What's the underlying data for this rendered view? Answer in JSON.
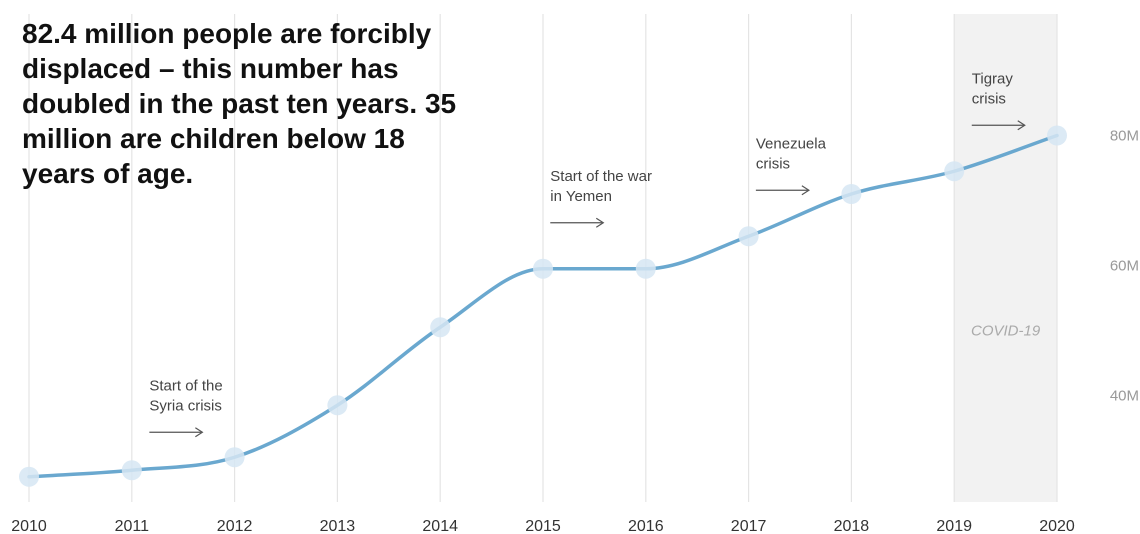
{
  "headline": "82.4 million people are forcibly displaced – this number has doubled in the past ten years. 35 million are children below 18 years of age.",
  "chart_data": {
    "type": "line",
    "title": "82.4 million people are forcibly displaced – this number has doubled in the past ten years. 35 million are children below 18 years of age.",
    "xlabel": "",
    "ylabel": "",
    "x": [
      2010,
      2011,
      2012,
      2013,
      2014,
      2015,
      2016,
      2017,
      2018,
      2019,
      2020
    ],
    "series": [
      {
        "values": [
          27.5,
          28.5,
          30.5,
          38.5,
          50.5,
          59.5,
          59.5,
          64.5,
          71,
          74.5,
          80
        ]
      }
    ],
    "ylim": [
      20,
      85
    ],
    "y_ticks": [
      40,
      60,
      80
    ],
    "y_tick_labels": [
      "40M",
      "60M",
      "80M"
    ],
    "x_tick_labels": [
      "2010",
      "2011",
      "2012",
      "2013",
      "2014",
      "2015",
      "2016",
      "2017",
      "2018",
      "2019",
      "2020"
    ],
    "grid": "vertical",
    "shaded_band": {
      "from": 2019,
      "to": 2020,
      "label": "COVID-19"
    },
    "annotations": [
      {
        "lines": [
          "Start of the",
          "Syria crisis"
        ],
        "x": 2011.2
      },
      {
        "lines": [
          "Start of the war",
          "in Yemen"
        ],
        "x": 2015.1
      },
      {
        "lines": [
          "Venezuela",
          "crisis"
        ],
        "x": 2017.1
      },
      {
        "lines": [
          "Tigray",
          "crisis"
        ],
        "x": 2019.2
      }
    ],
    "colors": {
      "line": "#6aa8cf",
      "marker": "#d6e6f3",
      "band": "#f2f2f2",
      "grid": "#e4e4e4",
      "arrow": "#555555"
    }
  }
}
